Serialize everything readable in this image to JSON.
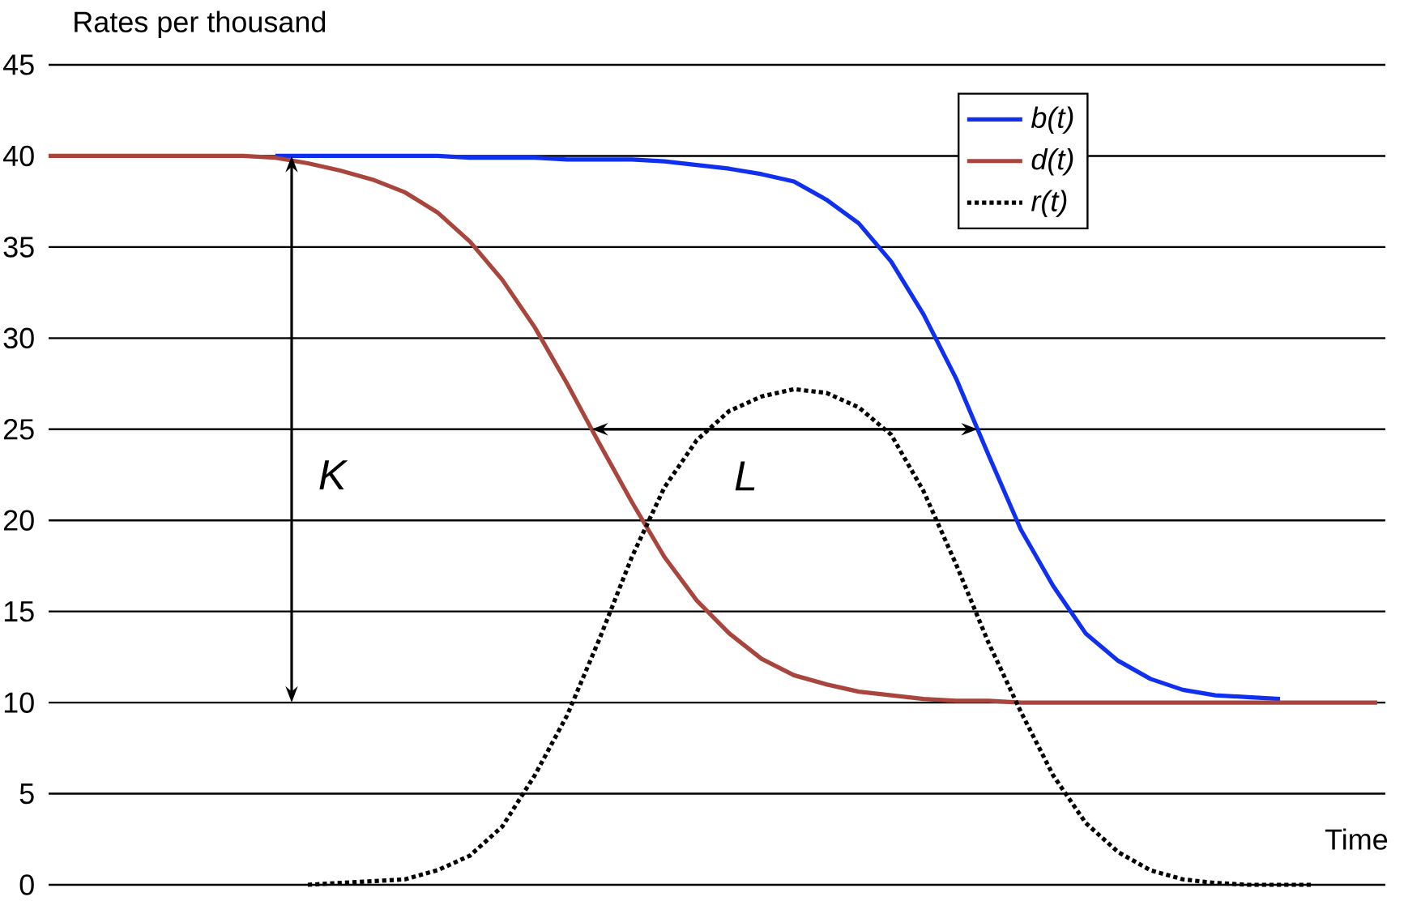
{
  "chart_data": {
    "type": "line",
    "ylabel": "Rates per thousand",
    "xlabel": "Time",
    "categories": [
      null,
      null,
      null,
      null,
      null,
      null,
      null,
      null,
      null,
      null,
      null,
      null,
      null,
      null,
      null,
      null,
      null,
      null,
      null,
      null,
      null,
      null,
      null,
      null,
      null,
      null,
      null,
      null,
      null,
      null,
      null,
      null,
      null,
      null,
      null,
      null,
      null,
      null,
      null,
      null,
      null,
      null
    ],
    "series": [
      {
        "name": "b(t)",
        "color": "#1030f0",
        "line_style": "solid",
        "values": [
          null,
          null,
          null,
          null,
          null,
          null,
          null,
          40,
          40,
          40,
          40,
          40,
          40,
          39.9,
          39.9,
          39.9,
          39.8,
          39.8,
          39.8,
          39.7,
          39.5,
          39.3,
          39,
          38.6,
          37.6,
          36.3,
          34.2,
          31.3,
          27.8,
          23.6,
          19.5,
          16.4,
          13.8,
          12.3,
          11.3,
          10.7,
          10.4,
          10.3,
          10.2,
          null,
          null,
          null
        ]
      },
      {
        "name": "d(t)",
        "color": "#a8463e",
        "line_style": "solid",
        "values": [
          40,
          40,
          40,
          40,
          40,
          40,
          40,
          39.9,
          39.6,
          39.2,
          38.7,
          38,
          36.9,
          35.3,
          33.2,
          30.6,
          27.5,
          24.2,
          21,
          18,
          15.6,
          13.8,
          12.4,
          11.5,
          11,
          10.6,
          10.4,
          10.2,
          10.1,
          10.1,
          10,
          10,
          10,
          10,
          10,
          10,
          10,
          10,
          10,
          10,
          10,
          10
        ]
      },
      {
        "name": "r(t)",
        "color": "#000000",
        "line_style": "dotted",
        "values": [
          null,
          null,
          null,
          null,
          null,
          null,
          null,
          null,
          0,
          0.1,
          0.2,
          0.3,
          0.8,
          1.6,
          3.2,
          6,
          9.3,
          13.5,
          18,
          21.8,
          24.4,
          26,
          26.8,
          27.2,
          27,
          26.2,
          24.7,
          21.6,
          17.6,
          13.3,
          9.5,
          6,
          3.4,
          1.8,
          0.8,
          0.3,
          0.1,
          0,
          0,
          0,
          null,
          null
        ]
      }
    ],
    "ylim": [
      0,
      45
    ],
    "yticks": [
      0,
      5,
      10,
      15,
      20,
      25,
      30,
      35,
      40,
      45
    ],
    "grid": "y",
    "legend": "top right",
    "tick_labels": "y",
    "annotations": [
      "K",
      "L"
    ]
  }
}
